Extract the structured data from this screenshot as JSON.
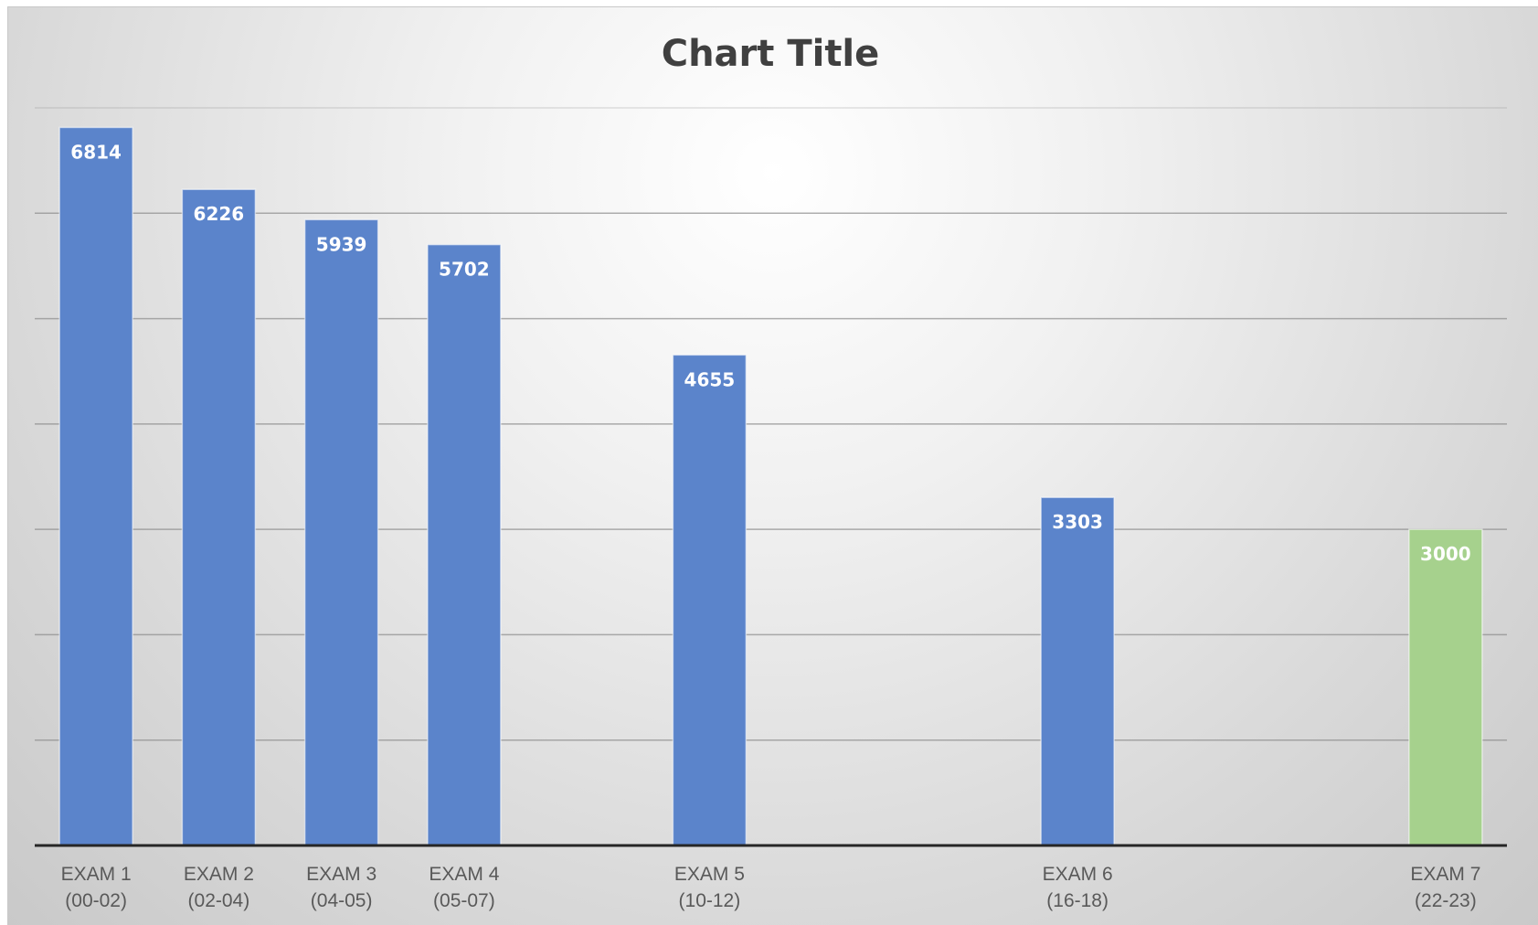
{
  "chart_data": {
    "type": "bar",
    "title": "Chart Title",
    "xlabel": "",
    "ylabel": "",
    "ylim": [
      0,
      7000
    ],
    "grid": true,
    "legend": "none",
    "categories": [
      [
        "EXAM 1",
        "(00-02)"
      ],
      [
        "EXAM 2",
        "(02-04)"
      ],
      [
        "EXAM 3",
        "(04-05)"
      ],
      [
        "EXAM 4",
        "(05-07)"
      ],
      [
        "EXAM 5",
        "(10-12)"
      ],
      [
        "EXAM 6",
        "(16-18)"
      ],
      [
        "EXAM 7",
        "(22-23)"
      ]
    ],
    "x": [
      1,
      2,
      3,
      4,
      6,
      9,
      12
    ],
    "xlim": [
      0.5,
      12.5
    ],
    "values": [
      6814,
      6226,
      5939,
      5702,
      4655,
      3303,
      3000
    ],
    "data_labels": [
      "6814",
      "6226",
      "5939",
      "5702",
      "4655",
      "3303",
      "3000"
    ],
    "bar_colors": [
      "#5b84cb",
      "#5b84cb",
      "#5b84cb",
      "#5b84cb",
      "#5b84cb",
      "#5b84cb",
      "#a6d18d"
    ]
  },
  "colors": {
    "bar_primary": "#5b84cb",
    "bar_highlight": "#a6d18d",
    "gridline": "#8c8c8c",
    "axis": "#262626"
  }
}
